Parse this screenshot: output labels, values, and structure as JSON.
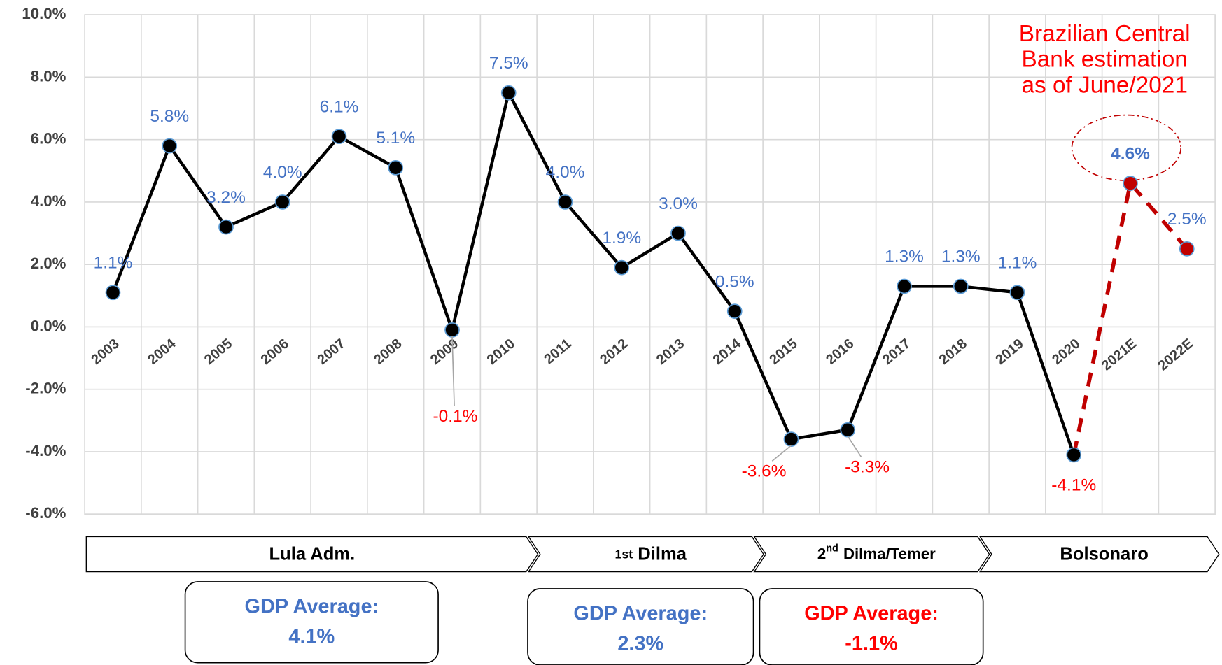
{
  "chart_data": {
    "type": "line",
    "categories": [
      "2003",
      "2004",
      "2005",
      "2006",
      "2007",
      "2008",
      "2009",
      "2010",
      "2011",
      "2012",
      "2013",
      "2014",
      "2015",
      "2016",
      "2017",
      "2018",
      "2019",
      "2020",
      "2021E",
      "2022E"
    ],
    "series": [
      {
        "color": "#000000",
        "values": [
          1.1,
          5.8,
          3.2,
          4.0,
          6.1,
          5.1,
          -0.1,
          7.5,
          4.0,
          1.9,
          3.0,
          0.5,
          -3.6,
          -3.3,
          1.3,
          1.3,
          1.1,
          -4.1,
          null,
          null
        ],
        "value_labels": [
          "1.1%",
          "5.8%",
          "3.2%",
          "4.0%",
          "6.1%",
          "5.1%",
          "-0.1%",
          "7.5%",
          "4.0%",
          "1.9%",
          "3.0%",
          "0.5%",
          "-3.6%",
          "-3.3%",
          "1.3%",
          "1.3%",
          "1.1%",
          "-4.1%",
          null,
          null
        ]
      },
      {
        "color": "#c00000",
        "line_style": "dashed",
        "values": [
          null,
          null,
          null,
          null,
          null,
          null,
          null,
          null,
          null,
          null,
          null,
          null,
          null,
          null,
          null,
          null,
          null,
          -4.1,
          4.6,
          2.5
        ],
        "value_labels": [
          null,
          null,
          null,
          null,
          null,
          null,
          null,
          null,
          null,
          null,
          null,
          null,
          null,
          null,
          null,
          null,
          null,
          null,
          "4.6%",
          "2.5%"
        ]
      }
    ],
    "ylim": [
      -6,
      10
    ],
    "yticks": [
      {
        "value": -6,
        "label": "-6.0%"
      },
      {
        "value": -4,
        "label": "-4.0%"
      },
      {
        "value": -2,
        "label": "-2.0%"
      },
      {
        "value": 0,
        "label": "0.0%"
      },
      {
        "value": 2,
        "label": "2.0%"
      },
      {
        "value": 4,
        "label": "4.0%"
      },
      {
        "value": 6,
        "label": "6.0%"
      },
      {
        "value": 8,
        "label": "8.0%"
      },
      {
        "value": 10,
        "label": "10.0%"
      }
    ],
    "grid": true,
    "annotation": {
      "lines": [
        "Brazilian Central",
        "Bank estimation",
        "as of June/2021"
      ]
    }
  },
  "periods": [
    {
      "name": "Lula Adm."
    },
    {
      "prefix": "1st",
      "name": "Dilma"
    },
    {
      "prefix": "2",
      "sup": "nd",
      "name": "Dilma/Temer"
    },
    {
      "name": "Bolsonaro"
    }
  ],
  "averages": [
    {
      "title": "GDP Average:",
      "value": 4.1,
      "value_label": "4.1%"
    },
    {
      "title": "GDP Average:",
      "value": 2.3,
      "value_label": "2.3%"
    },
    {
      "title": "GDP Average:",
      "value": -1.1,
      "value_label": "-1.1%"
    }
  ]
}
